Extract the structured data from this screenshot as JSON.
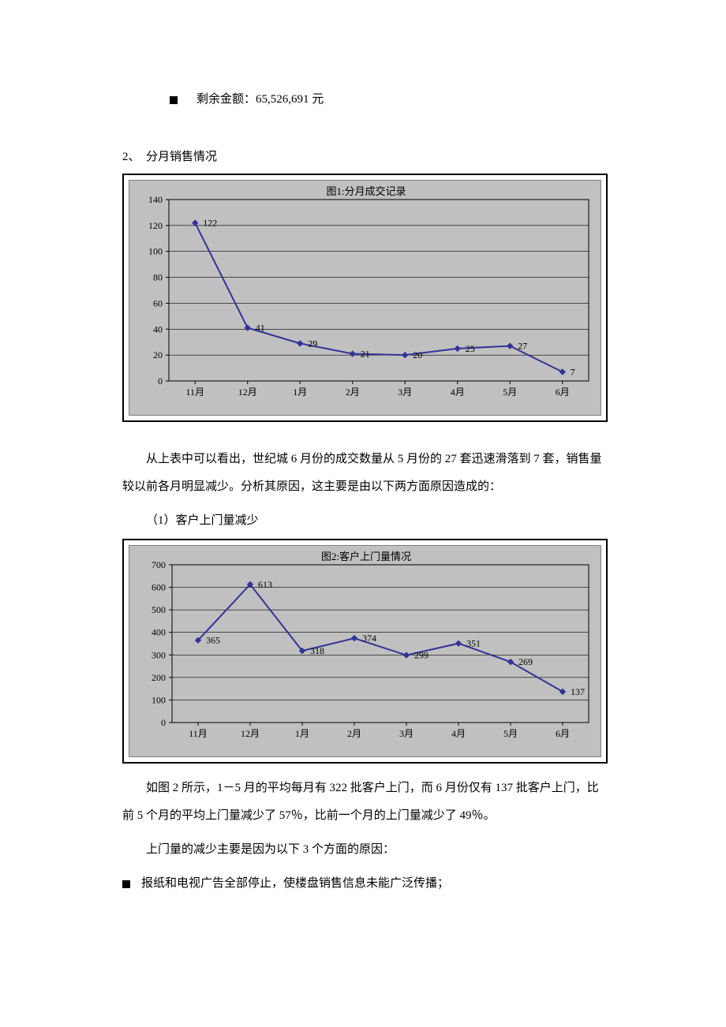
{
  "top_bullet": {
    "label": "剩余金额：65,526,691 元"
  },
  "section2": {
    "label": "2、　分月销售情况"
  },
  "chart1": {
    "type": "line",
    "title": "图1:分月成交记录",
    "title_fontsize": 13,
    "background_color": "#c0c0c0",
    "plot_background": "#c0c0c0",
    "grid_color": "#000000",
    "axis_color": "#000000",
    "line_color": "#333399",
    "marker_color": "#333399",
    "marker_style": "diamond",
    "marker_size": 7,
    "line_width": 2,
    "categories": [
      "11月",
      "12月",
      "1月",
      "2月",
      "3月",
      "4月",
      "5月",
      "6月"
    ],
    "values": [
      122,
      41,
      29,
      21,
      20,
      25,
      27,
      7
    ],
    "ylim": [
      0,
      140
    ],
    "ytick_step": 20,
    "tick_fontsize": 12,
    "label_fontsize": 12
  },
  "para1": "从上表中可以看出，世纪城 6 月份的成交数量从 5 月份的 27 套迅速滑落到 7 套，销售量较以前各月明显减少。分析其原因，这主要是由以下两方面原因造成的：",
  "sub1": "（1）客户上门量减少",
  "chart2": {
    "type": "line",
    "title": "图2:客户上门量情况",
    "title_fontsize": 13,
    "background_color": "#c0c0c0",
    "plot_background": "#c0c0c0",
    "grid_color": "#000000",
    "axis_color": "#000000",
    "line_color": "#333399",
    "marker_color": "#333399",
    "marker_style": "diamond",
    "marker_size": 7,
    "line_width": 2,
    "categories": [
      "11月",
      "12月",
      "1月",
      "2月",
      "3月",
      "4月",
      "5月",
      "6月"
    ],
    "values": [
      365,
      613,
      318,
      374,
      299,
      351,
      269,
      137
    ],
    "ylim": [
      0,
      700
    ],
    "ytick_step": 100,
    "tick_fontsize": 12,
    "label_fontsize": 12
  },
  "para2": "如图 2 所示，1－5 月的平均每月有 322 批客户上门，而 6 月份仅有 137 批客户上门，比前 5 个月的平均上门量减少了 57％，比前一个月的上门量减少了 49％。",
  "para3": "上门量的减少主要是因为以下 3 个方面的原因：",
  "bullet2": {
    "label": "报纸和电视广告全部停止，使楼盘销售信息未能广泛传播；"
  }
}
